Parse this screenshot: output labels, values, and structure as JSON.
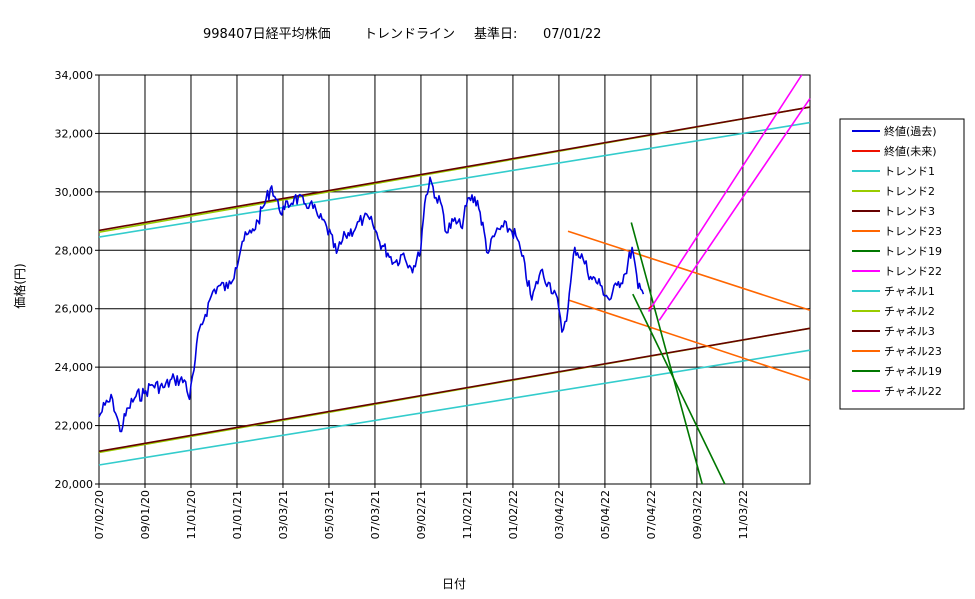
{
  "chart_data": {
    "type": "line",
    "title_left": "998407日経平均株価",
    "title_mid": "トレンドライン",
    "title_basis_label": "基準日:",
    "title_basis_date": "07/01/22",
    "xlabel": "日付",
    "ylabel": "価格(円)",
    "ylim": [
      20000,
      34000
    ],
    "yticks": [
      20000,
      22000,
      24000,
      26000,
      28000,
      30000,
      32000,
      34000
    ],
    "ytick_labels": [
      "20,000",
      "22,000",
      "24,000",
      "26,000",
      "28,000",
      "30,000",
      "32,000",
      "34,000"
    ],
    "xlim": [
      "2020-07-02",
      "2023-01-31"
    ],
    "xtick_labels": [
      "07/02/20",
      "09/01/20",
      "11/01/20",
      "01/01/21",
      "03/03/21",
      "05/03/21",
      "07/03/21",
      "09/02/21",
      "11/02/21",
      "01/02/22",
      "03/04/22",
      "05/04/22",
      "07/04/22",
      "09/03/22",
      "11/03/22"
    ],
    "xtick_dates": [
      "2020-07-02",
      "2020-09-01",
      "2020-11-01",
      "2021-01-01",
      "2021-03-03",
      "2021-05-03",
      "2021-07-03",
      "2021-09-02",
      "2021-11-02",
      "2022-01-02",
      "2022-03-04",
      "2022-05-04",
      "2022-07-04",
      "2022-09-03",
      "2022-11-03"
    ],
    "grid": true,
    "legend_position": "right",
    "series": [
      {
        "name": "終値(過去)",
        "color": "#0000dd",
        "width": 1.6,
        "kind": "price",
        "x": [
          "2020-07-02",
          "2020-07-10",
          "2020-07-20",
          "2020-07-30",
          "2020-08-10",
          "2020-08-20",
          "2020-08-31",
          "2020-09-10",
          "2020-09-25",
          "2020-10-10",
          "2020-10-25",
          "2020-10-30",
          "2020-11-05",
          "2020-11-12",
          "2020-11-20",
          "2020-11-30",
          "2020-12-10",
          "2020-12-20",
          "2020-12-30",
          "2021-01-08",
          "2021-01-20",
          "2021-01-29",
          "2021-02-05",
          "2021-02-16",
          "2021-02-26",
          "2021-03-05",
          "2021-03-18",
          "2021-03-31",
          "2021-04-08",
          "2021-04-20",
          "2021-04-30",
          "2021-05-13",
          "2021-05-25",
          "2021-06-08",
          "2021-06-18",
          "2021-06-30",
          "2021-07-09",
          "2021-07-20",
          "2021-07-30",
          "2021-08-10",
          "2021-08-20",
          "2021-08-31",
          "2021-09-07",
          "2021-09-14",
          "2021-09-22",
          "2021-09-30",
          "2021-10-06",
          "2021-10-15",
          "2021-10-25",
          "2021-11-05",
          "2021-11-16",
          "2021-11-30",
          "2021-12-10",
          "2021-12-20",
          "2021-12-30",
          "2022-01-06",
          "2022-01-14",
          "2022-01-27",
          "2022-02-08",
          "2022-02-18",
          "2022-02-28",
          "2022-03-08",
          "2022-03-16",
          "2022-03-25",
          "2022-04-05",
          "2022-04-15",
          "2022-04-28",
          "2022-05-10",
          "2022-05-20",
          "2022-05-31",
          "2022-06-09",
          "2022-06-17",
          "2022-06-24"
        ],
        "y": [
          22300,
          22700,
          22900,
          21800,
          22600,
          23000,
          23100,
          23400,
          23300,
          23600,
          23500,
          22900,
          23900,
          25300,
          25800,
          26600,
          26800,
          26700,
          27400,
          28300,
          28600,
          29000,
          29500,
          30200,
          29400,
          29400,
          29800,
          29600,
          29600,
          29100,
          28800,
          27900,
          28500,
          28800,
          29100,
          28900,
          28300,
          27900,
          27600,
          27900,
          27400,
          27800,
          29600,
          30500,
          29800,
          29500,
          28600,
          29000,
          28800,
          29800,
          29700,
          27900,
          28600,
          28800,
          28700,
          28500,
          27800,
          26300,
          27300,
          26900,
          26500,
          25200,
          26000,
          28100,
          27700,
          27100,
          26800,
          26300,
          26800,
          27200,
          28100,
          26700,
          26500
        ]
      },
      {
        "name": "終値(未来)",
        "color": "#ee1100",
        "width": 1.6,
        "kind": "line",
        "x": [
          "2022-07-01",
          "2022-07-05"
        ],
        "y": [
          26000,
          26100
        ]
      },
      {
        "name": "トレンド1",
        "color": "#33cccc",
        "width": 1.6,
        "kind": "line",
        "x": [
          "2020-07-02",
          "2023-01-31"
        ],
        "y": [
          28450,
          32370
        ]
      },
      {
        "name": "トレンド2",
        "color": "#99cc00",
        "width": 1.6,
        "kind": "line",
        "x": [
          "2020-07-02",
          "2023-01-31"
        ],
        "y": [
          28620,
          32900
        ]
      },
      {
        "name": "トレンド3",
        "color": "#660000",
        "width": 1.6,
        "kind": "line",
        "x": [
          "2020-07-02",
          "2023-01-31"
        ],
        "y": [
          28680,
          32900
        ]
      },
      {
        "name": "トレンド23",
        "color": "#ff6600",
        "width": 1.6,
        "kind": "line",
        "x": [
          "2022-03-16",
          "2023-01-31"
        ],
        "y": [
          28650,
          25950
        ]
      },
      {
        "name": "トレンド19",
        "color": "#007700",
        "width": 1.6,
        "kind": "line",
        "x": [
          "2022-06-08",
          "2022-09-10"
        ],
        "y": [
          28950,
          20000
        ]
      },
      {
        "name": "トレンド22",
        "color": "#ff00ff",
        "width": 1.6,
        "kind": "line",
        "x": [
          "2022-07-01",
          "2023-01-20"
        ],
        "y": [
          25900,
          34000
        ]
      },
      {
        "name": "チャネル1",
        "color": "#33cccc",
        "width": 1.6,
        "kind": "line",
        "x": [
          "2020-07-02",
          "2023-01-31"
        ],
        "y": [
          20650,
          24580
        ]
      },
      {
        "name": "チャネル2",
        "color": "#99cc00",
        "width": 1.6,
        "kind": "line",
        "x": [
          "2020-07-02",
          "2023-01-31"
        ],
        "y": [
          21080,
          25330
        ]
      },
      {
        "name": "チャネル3",
        "color": "#660000",
        "width": 1.6,
        "kind": "line",
        "x": [
          "2020-07-02",
          "2023-01-31"
        ],
        "y": [
          21120,
          25330
        ]
      },
      {
        "name": "チャネル23",
        "color": "#ff6600",
        "width": 1.6,
        "kind": "line",
        "x": [
          "2022-03-16",
          "2023-01-31"
        ],
        "y": [
          26300,
          23550
        ]
      },
      {
        "name": "チャネル19",
        "color": "#007700",
        "width": 1.6,
        "kind": "line",
        "x": [
          "2022-06-10",
          "2022-10-10"
        ],
        "y": [
          26500,
          20000
        ]
      },
      {
        "name": "チャネル22",
        "color": "#ff00ff",
        "width": 1.6,
        "kind": "line",
        "x": [
          "2022-07-15",
          "2023-01-31"
        ],
        "y": [
          25600,
          33200
        ]
      }
    ]
  }
}
